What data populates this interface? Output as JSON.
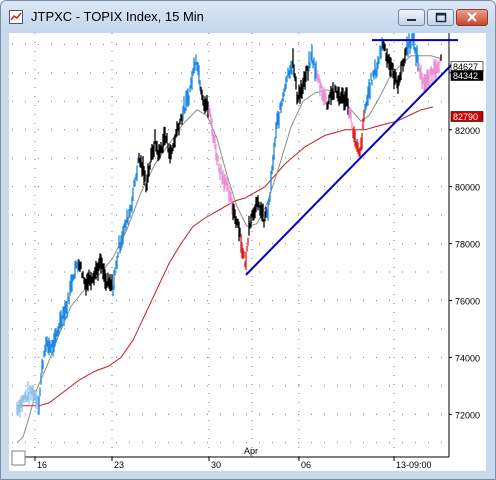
{
  "window": {
    "title": "JTPXC - TOPIX Index, 15 Min"
  },
  "chart_data": {
    "type": "line",
    "title": "JTPXC - TOPIX Index, 15 Min",
    "ylim": [
      70500,
      85400
    ],
    "y_ticks": [
      72000,
      74000,
      76000,
      78000,
      80000,
      82000,
      84000
    ],
    "y_tick_labels": [
      "72000",
      "74000",
      "76000",
      "78000",
      "80000",
      "82000",
      "84000"
    ],
    "x_ticks": [
      {
        "label": "16",
        "i": 26
      },
      {
        "label": "23",
        "i": 103
      },
      {
        "label": "30",
        "i": 200
      },
      {
        "label": "06",
        "i": 290
      },
      {
        "label": "13-09:00",
        "i": 385
      }
    ],
    "month_marker": {
      "label": "Apr",
      "i": 243
    },
    "price_tags": [
      {
        "label": "84627",
        "value": 84627,
        "bg": "#ffffff",
        "fg": "#000000"
      },
      {
        "label": "84342",
        "value": 84342,
        "bg": "#000000",
        "fg": "#ffffff"
      },
      {
        "label": "82790",
        "value": 82790,
        "bg": "#cc0000",
        "fg": "#ffffff"
      }
    ],
    "colors": {
      "price_default": "#000000",
      "price_blue": "#1e88e5",
      "price_light_blue": "#90c2ec",
      "price_pink": "#ec8fd4",
      "price_red": "#e51a1a",
      "ma_fast": "#8c8c8c",
      "ma_slow": "#cc1a1a",
      "trendline": "#0000cc",
      "grid": "#777777"
    },
    "trendline": {
      "from": {
        "i": 237,
        "value": 76900
      },
      "to": {
        "i": 443,
        "value": 84300
      }
    },
    "resistance": {
      "from_i": 363,
      "to_i": 449,
      "value": 85150
    },
    "price_pivots": [
      [
        8,
        72200
      ],
      [
        16,
        72600
      ],
      [
        24,
        72800
      ],
      [
        30,
        72400
      ],
      [
        33,
        73600
      ],
      [
        36,
        74400
      ],
      [
        45,
        74400
      ],
      [
        52,
        75400
      ],
      [
        58,
        75800
      ],
      [
        64,
        76900
      ],
      [
        70,
        77400
      ],
      [
        76,
        76600
      ],
      [
        84,
        76900
      ],
      [
        92,
        77300
      ],
      [
        97,
        76600
      ],
      [
        104,
        76500
      ],
      [
        110,
        77900
      ],
      [
        117,
        78700
      ],
      [
        122,
        79300
      ],
      [
        126,
        80200
      ],
      [
        130,
        81000
      ],
      [
        134,
        80600
      ],
      [
        137,
        80100
      ],
      [
        141,
        80800
      ],
      [
        146,
        81600
      ],
      [
        150,
        81100
      ],
      [
        156,
        81800
      ],
      [
        162,
        81100
      ],
      [
        168,
        82000
      ],
      [
        174,
        82600
      ],
      [
        180,
        83200
      ],
      [
        184,
        84000
      ],
      [
        187,
        84600
      ],
      [
        191,
        83700
      ],
      [
        195,
        83000
      ],
      [
        200,
        82700
      ],
      [
        205,
        81700
      ],
      [
        210,
        80700
      ],
      [
        216,
        80200
      ],
      [
        221,
        79600
      ],
      [
        226,
        79000
      ],
      [
        230,
        78600
      ],
      [
        234,
        77600
      ],
      [
        237,
        77300
      ],
      [
        240,
        78700
      ],
      [
        246,
        79300
      ],
      [
        251,
        79300
      ],
      [
        255,
        78800
      ],
      [
        260,
        79300
      ],
      [
        264,
        80900
      ],
      [
        268,
        82200
      ],
      [
        272,
        82800
      ],
      [
        276,
        83600
      ],
      [
        280,
        84100
      ],
      [
        284,
        84400
      ],
      [
        288,
        83200
      ],
      [
        293,
        83400
      ],
      [
        298,
        84000
      ],
      [
        303,
        84600
      ],
      [
        307,
        84000
      ],
      [
        312,
        83500
      ],
      [
        318,
        82900
      ],
      [
        322,
        83300
      ],
      [
        327,
        83300
      ],
      [
        333,
        83100
      ],
      [
        338,
        83100
      ],
      [
        343,
        82200
      ],
      [
        347,
        81400
      ],
      [
        351,
        81100
      ],
      [
        356,
        82700
      ],
      [
        362,
        83700
      ],
      [
        368,
        84200
      ],
      [
        374,
        85100
      ],
      [
        378,
        84600
      ],
      [
        383,
        84100
      ],
      [
        388,
        83600
      ],
      [
        394,
        84300
      ],
      [
        398,
        84900
      ],
      [
        403,
        85200
      ],
      [
        407,
        84700
      ],
      [
        412,
        83900
      ],
      [
        417,
        83600
      ],
      [
        423,
        84000
      ],
      [
        428,
        84300
      ],
      [
        432,
        84400
      ]
    ],
    "color_ranges": [
      {
        "from_i": 8,
        "to_i": 30,
        "color": "#90c2ec"
      },
      {
        "from_i": 30,
        "to_i": 70,
        "color": "#1e88e5"
      },
      {
        "from_i": 70,
        "to_i": 104,
        "color": "#000000"
      },
      {
        "from_i": 104,
        "to_i": 130,
        "color": "#1e88e5"
      },
      {
        "from_i": 130,
        "to_i": 174,
        "color": "#000000"
      },
      {
        "from_i": 174,
        "to_i": 192,
        "color": "#1e88e5"
      },
      {
        "from_i": 192,
        "to_i": 200,
        "color": "#000000"
      },
      {
        "from_i": 200,
        "to_i": 224,
        "color": "#ec8fd4"
      },
      {
        "from_i": 224,
        "to_i": 232,
        "color": "#000000"
      },
      {
        "from_i": 232,
        "to_i": 240,
        "color": "#e51a1a"
      },
      {
        "from_i": 240,
        "to_i": 258,
        "color": "#000000"
      },
      {
        "from_i": 258,
        "to_i": 284,
        "color": "#1e88e5"
      },
      {
        "from_i": 284,
        "to_i": 300,
        "color": "#000000"
      },
      {
        "from_i": 300,
        "to_i": 308,
        "color": "#1e88e5"
      },
      {
        "from_i": 308,
        "to_i": 318,
        "color": "#ec8fd4"
      },
      {
        "from_i": 318,
        "to_i": 340,
        "color": "#000000"
      },
      {
        "from_i": 340,
        "to_i": 344,
        "color": "#ec8fd4"
      },
      {
        "from_i": 344,
        "to_i": 356,
        "color": "#e51a1a"
      },
      {
        "from_i": 356,
        "to_i": 374,
        "color": "#1e88e5"
      },
      {
        "from_i": 374,
        "to_i": 398,
        "color": "#000000"
      },
      {
        "from_i": 398,
        "to_i": 410,
        "color": "#1e88e5"
      },
      {
        "from_i": 410,
        "to_i": 432,
        "color": "#ec8fd4"
      }
    ],
    "ma_fast": [
      [
        8,
        71000
      ],
      [
        14,
        71200
      ],
      [
        20,
        71900
      ],
      [
        28,
        72900
      ],
      [
        38,
        73700
      ],
      [
        50,
        74800
      ],
      [
        62,
        75800
      ],
      [
        76,
        76400
      ],
      [
        90,
        76900
      ],
      [
        104,
        77500
      ],
      [
        118,
        78500
      ],
      [
        132,
        79800
      ],
      [
        146,
        80800
      ],
      [
        160,
        81500
      ],
      [
        174,
        82200
      ],
      [
        188,
        82700
      ],
      [
        198,
        82500
      ],
      [
        208,
        81700
      ],
      [
        218,
        80400
      ],
      [
        228,
        79300
      ],
      [
        238,
        78600
      ],
      [
        248,
        78700
      ],
      [
        258,
        79400
      ],
      [
        270,
        80700
      ],
      [
        282,
        82100
      ],
      [
        294,
        83000
      ],
      [
        306,
        83300
      ],
      [
        318,
        83400
      ],
      [
        330,
        83300
      ],
      [
        342,
        82700
      ],
      [
        352,
        82300
      ],
      [
        360,
        82500
      ],
      [
        370,
        83100
      ],
      [
        380,
        83800
      ],
      [
        392,
        84300
      ],
      [
        402,
        84600
      ],
      [
        412,
        84600
      ],
      [
        422,
        84600
      ],
      [
        432,
        84500
      ]
    ],
    "ma_slow": [
      [
        8,
        72300
      ],
      [
        16,
        72300
      ],
      [
        24,
        72300
      ],
      [
        30,
        72300
      ],
      [
        40,
        72400
      ],
      [
        55,
        72800
      ],
      [
        70,
        73200
      ],
      [
        85,
        73500
      ],
      [
        100,
        73700
      ],
      [
        112,
        74000
      ],
      [
        124,
        74600
      ],
      [
        136,
        75500
      ],
      [
        148,
        76400
      ],
      [
        160,
        77300
      ],
      [
        172,
        78000
      ],
      [
        184,
        78600
      ],
      [
        196,
        78900
      ],
      [
        206,
        79100
      ],
      [
        216,
        79300
      ],
      [
        226,
        79500
      ],
      [
        236,
        79600
      ],
      [
        246,
        79800
      ],
      [
        256,
        80000
      ],
      [
        266,
        80400
      ],
      [
        276,
        80800
      ],
      [
        286,
        81100
      ],
      [
        296,
        81400
      ],
      [
        306,
        81600
      ],
      [
        316,
        81800
      ],
      [
        326,
        81900
      ],
      [
        336,
        82000
      ],
      [
        346,
        82000
      ],
      [
        356,
        82000
      ],
      [
        366,
        82100
      ],
      [
        376,
        82200
      ],
      [
        388,
        82300
      ],
      [
        400,
        82500
      ],
      [
        412,
        82700
      ],
      [
        424,
        82800
      ]
    ]
  }
}
